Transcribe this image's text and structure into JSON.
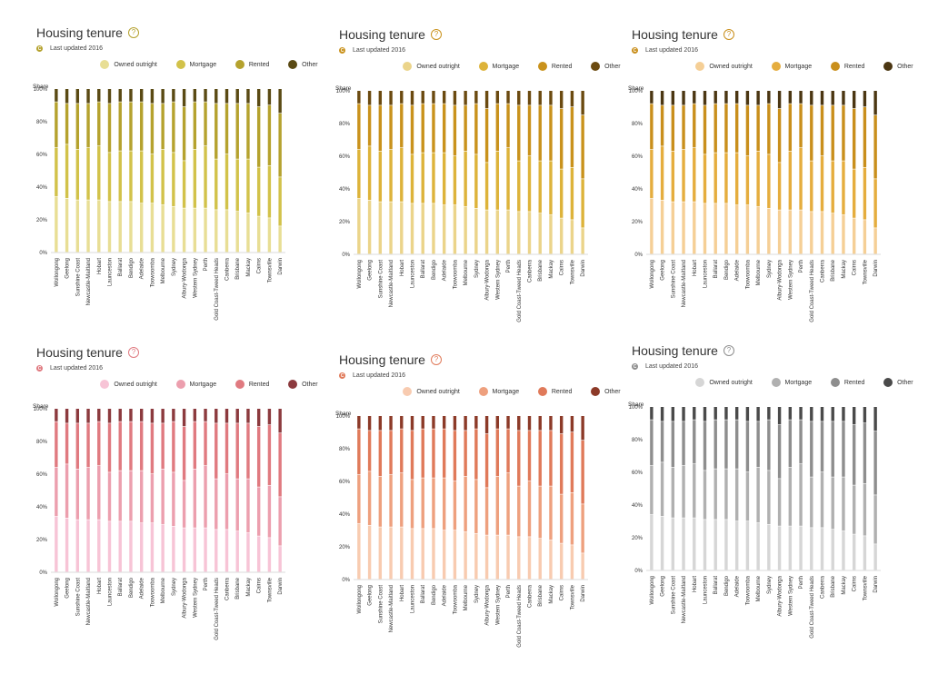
{
  "chart_data": [
    {
      "type": "bar",
      "stacked": true,
      "title": "Housing tenure",
      "subtitle": "Last updated 2016",
      "ylabel": "Share",
      "ylim": [
        0,
        100
      ],
      "yticks": [
        "0%",
        "20%",
        "40%",
        "60%",
        "80%",
        "100%"
      ],
      "legend_position": "top",
      "grid": false,
      "categories": [
        "Wollongong",
        "Geelong",
        "Sunshine Coast",
        "Newcastle-Maitland",
        "Hobart",
        "Launceston",
        "Ballarat",
        "Bendigo",
        "Adelaide",
        "Toowoomba",
        "Melbourne",
        "Sydney",
        "Albury-Wodonga",
        "Western Sydney",
        "Perth",
        "Gold Coast-Tweed Heads",
        "Canberra",
        "Brisbane",
        "Mackay",
        "Cairns",
        "Townsville",
        "Darwin"
      ],
      "series": [
        {
          "name": "Owned outright",
          "values": [
            34,
            33,
            32,
            32,
            32,
            31,
            31,
            31,
            30,
            30,
            29,
            28,
            27,
            27,
            27,
            26,
            26,
            25,
            24,
            22,
            21,
            16
          ]
        },
        {
          "name": "Mortgage",
          "values": [
            30,
            33,
            31,
            32,
            33,
            30,
            31,
            31,
            32,
            30,
            34,
            33,
            29,
            36,
            38,
            31,
            34,
            32,
            33,
            30,
            32,
            30
          ]
        },
        {
          "name": "Rented",
          "values": [
            28,
            25,
            28,
            27,
            27,
            30,
            30,
            30,
            30,
            31,
            28,
            31,
            33,
            29,
            27,
            34,
            31,
            34,
            34,
            37,
            37,
            39
          ]
        },
        {
          "name": "Other",
          "values": [
            8,
            9,
            9,
            9,
            8,
            9,
            8,
            8,
            8,
            9,
            9,
            8,
            11,
            8,
            8,
            9,
            9,
            9,
            9,
            11,
            10,
            15
          ]
        }
      ],
      "colors": [
        "#e8de95",
        "#d2c24a",
        "#b5a22e",
        "#5a4a14"
      ]
    },
    {
      "type": "bar",
      "stacked": true,
      "title": "Housing tenure",
      "subtitle": "Last updated 2016",
      "ylabel": "Share",
      "ylim": [
        0,
        100
      ],
      "yticks": [
        "0%",
        "20%",
        "40%",
        "60%",
        "80%",
        "100%"
      ],
      "legend_position": "top",
      "grid": false,
      "categories": [
        "Wollongong",
        "Geelong",
        "Sunshine Coast",
        "Newcastle-Maitland",
        "Hobart",
        "Launceston",
        "Ballarat",
        "Bendigo",
        "Adelaide",
        "Toowoomba",
        "Melbourne",
        "Sydney",
        "Albury-Wodonga",
        "Western Sydney",
        "Perth",
        "Gold Coast-Tweed Heads",
        "Canberra",
        "Brisbane",
        "Mackay",
        "Cairns",
        "Townsville",
        "Darwin"
      ],
      "series": [
        {
          "name": "Owned outright",
          "values": [
            34,
            33,
            32,
            32,
            32,
            31,
            31,
            31,
            30,
            30,
            29,
            28,
            27,
            27,
            27,
            26,
            26,
            25,
            24,
            22,
            21,
            16
          ]
        },
        {
          "name": "Mortgage",
          "values": [
            30,
            33,
            31,
            32,
            33,
            30,
            31,
            31,
            32,
            30,
            34,
            33,
            29,
            36,
            38,
            31,
            34,
            32,
            33,
            30,
            32,
            30
          ]
        },
        {
          "name": "Rented",
          "values": [
            28,
            25,
            28,
            27,
            27,
            30,
            30,
            30,
            30,
            31,
            28,
            31,
            33,
            29,
            27,
            34,
            31,
            34,
            34,
            37,
            37,
            39
          ]
        },
        {
          "name": "Other",
          "values": [
            8,
            9,
            9,
            9,
            8,
            9,
            8,
            8,
            8,
            9,
            9,
            8,
            11,
            8,
            8,
            9,
            9,
            9,
            9,
            11,
            10,
            15
          ]
        }
      ],
      "colors": [
        "#ebd48a",
        "#ddb33a",
        "#c9921c",
        "#6b4a10"
      ]
    },
    {
      "type": "bar",
      "stacked": true,
      "title": "Housing tenure",
      "subtitle": "Last updated 2016",
      "ylabel": "Share",
      "ylim": [
        0,
        100
      ],
      "yticks": [
        "0%",
        "20%",
        "40%",
        "60%",
        "80%",
        "100%"
      ],
      "legend_position": "top",
      "grid": false,
      "categories": [
        "Wollongong",
        "Geelong",
        "Sunshine Coast",
        "Newcastle-Maitland",
        "Hobart",
        "Launceston",
        "Ballarat",
        "Bendigo",
        "Adelaide",
        "Toowoomba",
        "Melbourne",
        "Sydney",
        "Albury-Wodonga",
        "Western Sydney",
        "Perth",
        "Gold Coast-Tweed Heads",
        "Canberra",
        "Brisbane",
        "Mackay",
        "Cairns",
        "Townsville",
        "Darwin"
      ],
      "series": [
        {
          "name": "Owned outright",
          "values": [
            34,
            33,
            32,
            32,
            32,
            31,
            31,
            31,
            30,
            30,
            29,
            28,
            27,
            27,
            27,
            26,
            26,
            25,
            24,
            22,
            21,
            16
          ]
        },
        {
          "name": "Mortgage",
          "values": [
            30,
            33,
            31,
            32,
            33,
            30,
            31,
            31,
            32,
            30,
            34,
            33,
            29,
            36,
            38,
            31,
            34,
            32,
            33,
            30,
            32,
            30
          ]
        },
        {
          "name": "Rented",
          "values": [
            28,
            25,
            28,
            27,
            27,
            30,
            30,
            30,
            30,
            31,
            28,
            31,
            33,
            29,
            27,
            34,
            31,
            34,
            34,
            37,
            37,
            39
          ]
        },
        {
          "name": "Other",
          "values": [
            8,
            9,
            9,
            9,
            8,
            9,
            8,
            8,
            8,
            9,
            9,
            8,
            11,
            8,
            8,
            9,
            9,
            9,
            9,
            11,
            10,
            15
          ]
        }
      ],
      "colors": [
        "#f5cf96",
        "#e5ad3e",
        "#c98f1c",
        "#4b3612"
      ]
    },
    {
      "type": "bar",
      "stacked": true,
      "title": "Housing tenure",
      "subtitle": "Last updated 2016",
      "ylabel": "Share",
      "ylim": [
        0,
        100
      ],
      "yticks": [
        "0%",
        "20%",
        "40%",
        "60%",
        "80%",
        "100%"
      ],
      "legend_position": "top",
      "grid": false,
      "categories": [
        "Wollongong",
        "Geelong",
        "Sunshine Coast",
        "Newcastle-Maitland",
        "Hobart",
        "Launceston",
        "Ballarat",
        "Bendigo",
        "Adelaide",
        "Toowoomba",
        "Melbourne",
        "Sydney",
        "Albury-Wodonga",
        "Western Sydney",
        "Perth",
        "Gold Coast-Tweed Heads",
        "Canberra",
        "Brisbane",
        "Mackay",
        "Cairns",
        "Townsville",
        "Darwin"
      ],
      "series": [
        {
          "name": "Owned outright",
          "values": [
            34,
            33,
            32,
            32,
            32,
            31,
            31,
            31,
            30,
            30,
            29,
            28,
            27,
            27,
            27,
            26,
            26,
            25,
            24,
            22,
            21,
            16
          ]
        },
        {
          "name": "Mortgage",
          "values": [
            30,
            33,
            31,
            32,
            33,
            30,
            31,
            31,
            32,
            30,
            34,
            33,
            29,
            36,
            38,
            31,
            34,
            32,
            33,
            30,
            32,
            30
          ]
        },
        {
          "name": "Rented",
          "values": [
            28,
            25,
            28,
            27,
            27,
            30,
            30,
            30,
            30,
            31,
            28,
            31,
            33,
            29,
            27,
            34,
            31,
            34,
            34,
            37,
            37,
            39
          ]
        },
        {
          "name": "Other",
          "values": [
            8,
            9,
            9,
            9,
            8,
            9,
            8,
            8,
            8,
            9,
            9,
            8,
            11,
            8,
            8,
            9,
            9,
            9,
            9,
            11,
            10,
            15
          ]
        }
      ],
      "colors": [
        "#f7c4d6",
        "#ec9fae",
        "#e07a80",
        "#8c3a3e"
      ]
    },
    {
      "type": "bar",
      "stacked": true,
      "title": "Housing tenure",
      "subtitle": "Last updated 2016",
      "ylabel": "Share",
      "ylim": [
        0,
        100
      ],
      "yticks": [
        "0%",
        "20%",
        "40%",
        "60%",
        "80%",
        "100%"
      ],
      "legend_position": "top",
      "grid": false,
      "categories": [
        "Wollongong",
        "Geelong",
        "Sunshine Coast",
        "Newcastle-Maitland",
        "Hobart",
        "Launceston",
        "Ballarat",
        "Bendigo",
        "Adelaide",
        "Toowoomba",
        "Melbourne",
        "Sydney",
        "Albury-Wodonga",
        "Western Sydney",
        "Perth",
        "Gold Coast-Tweed Heads",
        "Canberra",
        "Brisbane",
        "Mackay",
        "Cairns",
        "Townsville",
        "Darwin"
      ],
      "series": [
        {
          "name": "Owned outright",
          "values": [
            34,
            33,
            32,
            32,
            32,
            31,
            31,
            31,
            30,
            30,
            29,
            28,
            27,
            27,
            27,
            26,
            26,
            25,
            24,
            22,
            21,
            16
          ]
        },
        {
          "name": "Mortgage",
          "values": [
            30,
            33,
            31,
            32,
            33,
            30,
            31,
            31,
            32,
            30,
            34,
            33,
            29,
            36,
            38,
            31,
            34,
            32,
            33,
            30,
            32,
            30
          ]
        },
        {
          "name": "Rented",
          "values": [
            28,
            25,
            28,
            27,
            27,
            30,
            30,
            30,
            30,
            31,
            28,
            31,
            33,
            29,
            27,
            34,
            31,
            34,
            34,
            37,
            37,
            39
          ]
        },
        {
          "name": "Other",
          "values": [
            8,
            9,
            9,
            9,
            8,
            9,
            8,
            8,
            8,
            9,
            9,
            8,
            11,
            8,
            8,
            9,
            9,
            9,
            9,
            11,
            10,
            15
          ]
        }
      ],
      "colors": [
        "#f8cbb0",
        "#eea07e",
        "#e07a5a",
        "#8c3a28"
      ]
    },
    {
      "type": "bar",
      "stacked": true,
      "title": "Housing tenure",
      "subtitle": "Last updated 2016",
      "ylabel": "Share",
      "ylim": [
        0,
        100
      ],
      "yticks": [
        "0%",
        "20%",
        "40%",
        "60%",
        "80%",
        "100%"
      ],
      "legend_position": "top",
      "grid": false,
      "categories": [
        "Wollongong",
        "Geelong",
        "Sunshine Coast",
        "Newcastle-Maitland",
        "Hobart",
        "Launceston",
        "Ballarat",
        "Bendigo",
        "Adelaide",
        "Toowoomba",
        "Melbourne",
        "Sydney",
        "Albury-Wodonga",
        "Western Sydney",
        "Perth",
        "Gold Coast-Tweed Heads",
        "Canberra",
        "Brisbane",
        "Mackay",
        "Cairns",
        "Townsville",
        "Darwin"
      ],
      "series": [
        {
          "name": "Owned outright",
          "values": [
            34,
            33,
            32,
            32,
            32,
            31,
            31,
            31,
            30,
            30,
            29,
            28,
            27,
            27,
            27,
            26,
            26,
            25,
            24,
            22,
            21,
            16
          ]
        },
        {
          "name": "Mortgage",
          "values": [
            30,
            33,
            31,
            32,
            33,
            30,
            31,
            31,
            32,
            30,
            34,
            33,
            29,
            36,
            38,
            31,
            34,
            32,
            33,
            30,
            32,
            30
          ]
        },
        {
          "name": "Rented",
          "values": [
            28,
            25,
            28,
            27,
            27,
            30,
            30,
            30,
            30,
            31,
            28,
            31,
            33,
            29,
            27,
            34,
            31,
            34,
            34,
            37,
            37,
            39
          ]
        },
        {
          "name": "Other",
          "values": [
            8,
            9,
            9,
            9,
            8,
            9,
            8,
            8,
            8,
            9,
            9,
            8,
            11,
            8,
            8,
            9,
            9,
            9,
            9,
            11,
            10,
            15
          ]
        }
      ],
      "colors": [
        "#d6d6d6",
        "#b0b0b0",
        "#8e8e8e",
        "#4a4a4a"
      ]
    }
  ],
  "icons": {
    "help": "question-circle-icon",
    "updated": "clock-circle-icon",
    "help_glyph": "?",
    "updated_glyph": "C"
  }
}
